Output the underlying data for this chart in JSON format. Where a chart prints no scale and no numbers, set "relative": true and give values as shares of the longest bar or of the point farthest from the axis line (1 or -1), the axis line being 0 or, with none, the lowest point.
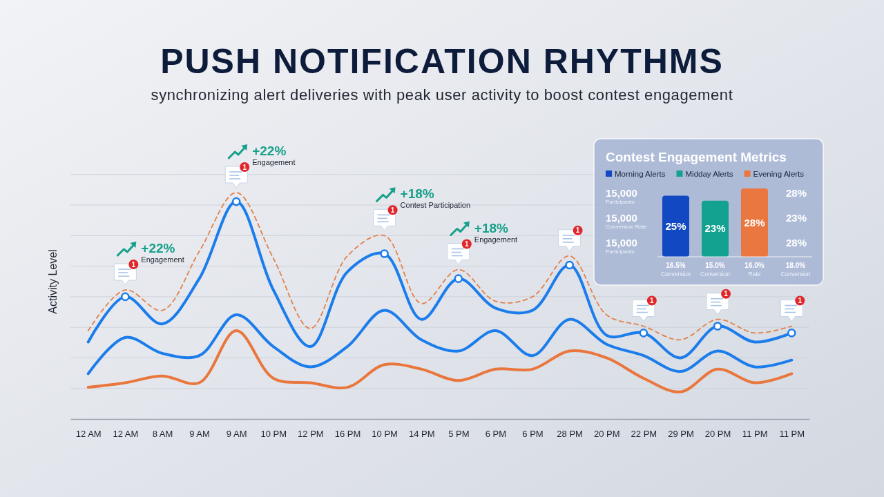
{
  "chart_data": [
    {
      "type": "line",
      "title": "PUSH NOTIFICATION RHYTHMS",
      "subtitle": "synchronizing alert deliveries with peak user activity to boost contest engagement",
      "ylabel": "Activity Level",
      "categories": [
        "12 AM",
        "12 AM",
        "8 AM",
        "9 AM",
        "9 AM",
        "10 PM",
        "12 PM",
        "16 PM",
        "10 PM",
        "14 PM",
        "5 PM",
        "6 PM",
        "6 PM",
        "28 PM",
        "20 PM",
        "22 PM",
        "29 PM",
        "20 PM",
        "11 PM",
        "11 PM"
      ],
      "relative": true,
      "grid": "y",
      "series": [
        {
          "color": "#e9773d",
          "values": [
            0.14,
            0.16,
            0.19,
            0.16,
            0.39,
            0.18,
            0.16,
            0.14,
            0.24,
            0.22,
            0.17,
            0.22,
            0.22,
            0.3,
            0.27,
            0.18,
            0.12,
            0.22,
            0.16,
            0.2
          ]
        },
        {
          "color": "#1b7ceb",
          "values": [
            0.2,
            0.36,
            0.29,
            0.28,
            0.46,
            0.32,
            0.23,
            0.32,
            0.48,
            0.35,
            0.3,
            0.39,
            0.28,
            0.44,
            0.33,
            0.28,
            0.21,
            0.3,
            0.23,
            0.26
          ]
        },
        {
          "color": "#e2804a",
          "line_style": "dashed",
          "values": [
            0.39,
            0.57,
            0.48,
            0.74,
            1,
            0.71,
            0.4,
            0.72,
            0.81,
            0.51,
            0.66,
            0.52,
            0.54,
            0.72,
            0.46,
            0.41,
            0.35,
            0.44,
            0.38,
            0.41
          ]
        },
        {
          "color": "#1b7ceb",
          "values": [
            0.34,
            0.54,
            0.42,
            0.62,
            0.96,
            0.57,
            0.32,
            0.65,
            0.73,
            0.44,
            0.62,
            0.49,
            0.48,
            0.68,
            0.37,
            0.38,
            0.27,
            0.41,
            0.34,
            0.38
          ]
        },
        {
          "type": "scatter",
          "marker": "circle",
          "color": "#1b7ceb",
          "values": [
            null,
            0.54,
            null,
            null,
            0.96,
            null,
            null,
            null,
            0.73,
            null,
            0.62,
            null,
            null,
            0.68,
            null,
            0.38,
            null,
            0.41,
            null,
            0.38
          ]
        }
      ],
      "annotations": [
        "+22%",
        "Engagement",
        "+22%",
        "Engagement",
        "+18%",
        "Contest Participation",
        "+18%",
        "Engagement",
        "1",
        "1",
        "1",
        "1",
        "1",
        "1",
        "1",
        "1"
      ]
    },
    {
      "type": "bar",
      "title": "Contest Engagement Metrics",
      "categories": [
        null,
        null,
        null
      ],
      "stacked": true,
      "legend": "top",
      "series": [
        {
          "name": "Morning Alerts",
          "color": "#1249c2",
          "values": [
            25,
            null,
            null
          ],
          "value_labels": [
            "25%",
            null,
            null
          ]
        },
        {
          "name": "Midday Alerts",
          "color": "#14a290",
          "values": [
            null,
            23,
            null
          ],
          "value_labels": [
            null,
            "23%",
            null
          ]
        },
        {
          "name": "Evening Alerts",
          "color": "#ea7640",
          "values": [
            null,
            null,
            28
          ],
          "value_labels": [
            null,
            null,
            "28%"
          ]
        }
      ],
      "annotations": [
        "15,000",
        "Participants",
        "15,000",
        "Conversion Rate",
        "15,000",
        "Participants",
        "28%",
        "23%",
        "28%",
        "16.5%",
        "Conversion",
        "15.0%",
        "Conversion",
        "16.0%",
        "Rate",
        "18.0%",
        "Conversion"
      ]
    }
  ]
}
